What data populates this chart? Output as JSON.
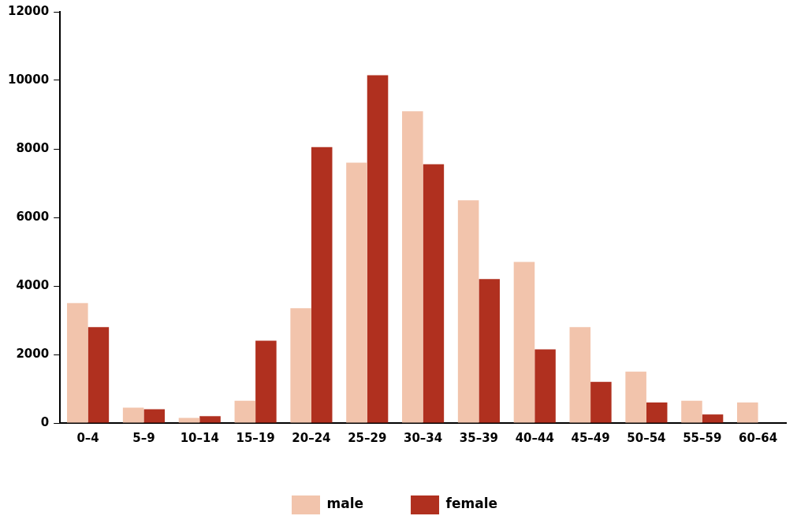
{
  "chart_data": {
    "type": "bar",
    "categories": [
      "0–4",
      "5–9",
      "10–14",
      "15–19",
      "20–24",
      "25–29",
      "30–34",
      "35–39",
      "40–44",
      "45–49",
      "50–54",
      "55–59",
      "60–64"
    ],
    "series": [
      {
        "name": "male",
        "color": "#f2c4ac",
        "values": [
          3500,
          450,
          150,
          650,
          3350,
          7600,
          9100,
          6500,
          4700,
          2800,
          1500,
          650,
          600
        ]
      },
      {
        "name": "female",
        "color": "#b0301f",
        "values": [
          2800,
          400,
          200,
          2400,
          8050,
          10150,
          7550,
          4200,
          2150,
          1200,
          600,
          250,
          null
        ]
      }
    ],
    "ylim": [
      0,
      12000
    ],
    "yticks": [
      0,
      2000,
      4000,
      6000,
      8000,
      10000,
      12000
    ],
    "grid": false,
    "legend": "bottom"
  }
}
